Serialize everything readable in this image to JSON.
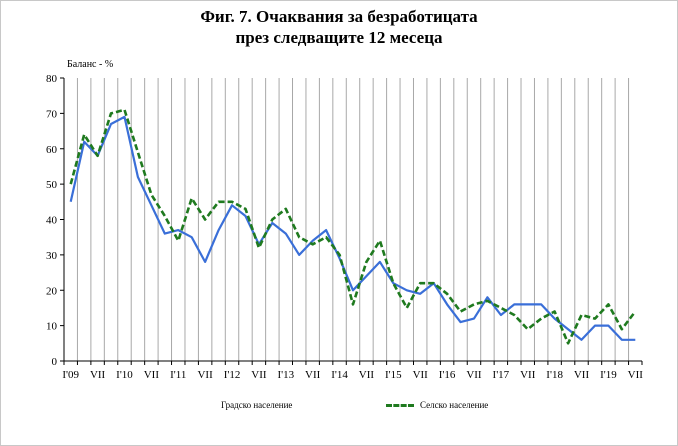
{
  "title_lines": [
    "Фиг. 7. Очаквания за безработицата",
    "през следващите 12 месеца"
  ],
  "chart_data": {
    "type": "line",
    "title": "Фиг. 7. Очаквания за безработицата през следващите 12 месеца",
    "ylabel": "Баланс - %",
    "xlabel": "",
    "ylim": [
      0,
      80
    ],
    "yticks": [
      0,
      10,
      20,
      30,
      40,
      50,
      60,
      70,
      80
    ],
    "x_tick_labels": [
      "I'09",
      "VII",
      "I'10",
      "VII",
      "I'11",
      "VII",
      "I'12",
      "VII",
      "I'13",
      "VII",
      "I'14",
      "VII",
      "I'15",
      "VII",
      "I'16",
      "VII",
      "I'17",
      "VII",
      "I'18",
      "VII",
      "I'19",
      "VII"
    ],
    "x_tick_index_step": 2,
    "grid": "vertical",
    "legend_position": "bottom",
    "series": [
      {
        "name": "Градско население",
        "color": "#3a6fd8",
        "style": "solid",
        "values": [
          45,
          62,
          58,
          67,
          69,
          52,
          44,
          36,
          37,
          35,
          28,
          37,
          44,
          41,
          33,
          39,
          36,
          30,
          34,
          37,
          29,
          20,
          24,
          28,
          22,
          20,
          19,
          22,
          16,
          11,
          12,
          18,
          13,
          16,
          16,
          16,
          12,
          9,
          6,
          10,
          10,
          6,
          6
        ]
      },
      {
        "name": "Селско население",
        "color": "#1f7a1f",
        "style": "dashed",
        "values": [
          50,
          64,
          58,
          70,
          71,
          59,
          47,
          41,
          34,
          46,
          40,
          45,
          45,
          43,
          32,
          40,
          43,
          35,
          33,
          35,
          30,
          16,
          28,
          34,
          22,
          15,
          22,
          22,
          19,
          14,
          16,
          17,
          15,
          13,
          9,
          12,
          14,
          5,
          13,
          12,
          16,
          9,
          14
        ]
      }
    ]
  }
}
